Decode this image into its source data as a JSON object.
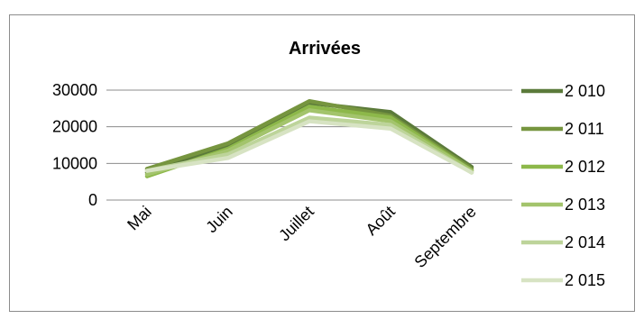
{
  "chart_data": {
    "type": "line",
    "title": "Arrivées",
    "categories": [
      "Mai",
      "Juin",
      "Juillet",
      "Août",
      "Septembre"
    ],
    "ylim": [
      0,
      30000
    ],
    "yticks": [
      "0",
      "10000",
      "20000",
      "30000"
    ],
    "grid": true,
    "legend_position": "right",
    "series": [
      {
        "name": "2 010",
        "color": "#5b7a3a",
        "values": [
          7500,
          15000,
          26500,
          24000,
          9000
        ]
      },
      {
        "name": "2 011",
        "color": "#76953f",
        "values": [
          8500,
          15500,
          27000,
          23000,
          8500
        ]
      },
      {
        "name": "2 012",
        "color": "#8db84a",
        "values": [
          6500,
          14000,
          25500,
          22500,
          8000
        ]
      },
      {
        "name": "2 013",
        "color": "#a3c46c",
        "values": [
          7000,
          13500,
          24500,
          21500,
          8000
        ]
      },
      {
        "name": "2 014",
        "color": "#bdd49a",
        "values": [
          8000,
          12500,
          22500,
          20500,
          7500
        ]
      },
      {
        "name": "2 015",
        "color": "#d7e3c3",
        "values": [
          8000,
          11500,
          21500,
          19500,
          7500
        ]
      }
    ]
  }
}
